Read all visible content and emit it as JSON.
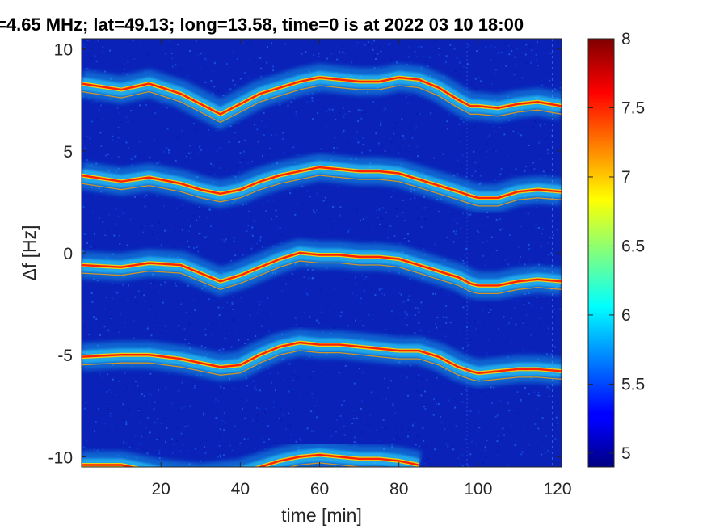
{
  "chart_data": {
    "type": "heatmap",
    "title": "=4.65 MHz;  lat=49.13; long=13.58, time=0 is at 2022 03 10 18:00",
    "xlabel": "time [min]",
    "ylabel": "Δf [Hz]",
    "xlim": [
      0,
      121
    ],
    "ylim": [
      -10.5,
      10.5
    ],
    "x_ticks": [
      20,
      40,
      60,
      80,
      100,
      120
    ],
    "y_ticks": [
      10,
      5,
      0,
      -5,
      -10
    ],
    "y_tick_labels": [
      "10",
      "5",
      "0",
      "-5",
      "-10"
    ],
    "colorbar": {
      "range": [
        4.9,
        8.0
      ],
      "ticks": [
        5,
        5.5,
        6,
        6.5,
        7,
        7.5,
        8
      ],
      "tick_labels": [
        "5",
        "5.5",
        "6",
        "6.5",
        "7",
        "7.5",
        "8"
      ],
      "colormap": "jet"
    },
    "background_color": "#0a22b8",
    "series": [
      {
        "x": [
          0,
          10,
          17,
          25,
          30,
          35,
          40,
          45,
          50,
          55,
          60,
          65,
          70,
          75,
          80,
          85,
          90,
          95,
          98,
          100,
          105,
          110,
          115,
          121
        ],
        "y": [
          8.3,
          8.0,
          8.3,
          7.8,
          7.3,
          6.8,
          7.3,
          7.8,
          8.1,
          8.4,
          8.6,
          8.5,
          8.4,
          8.4,
          8.6,
          8.5,
          8.1,
          7.5,
          7.2,
          7.2,
          7.1,
          7.3,
          7.4,
          7.2
        ]
      },
      {
        "x": [
          0,
          10,
          17,
          25,
          30,
          35,
          40,
          45,
          50,
          55,
          60,
          65,
          70,
          75,
          80,
          85,
          90,
          95,
          98,
          100,
          105,
          110,
          115,
          121
        ],
        "y": [
          3.8,
          3.5,
          3.7,
          3.4,
          3.1,
          2.9,
          3.1,
          3.5,
          3.8,
          4.0,
          4.2,
          4.1,
          4.0,
          4.0,
          3.9,
          3.6,
          3.3,
          3.0,
          2.8,
          2.7,
          2.7,
          3.0,
          3.1,
          3.0
        ]
      },
      {
        "x": [
          0,
          10,
          17,
          25,
          30,
          35,
          40,
          45,
          50,
          55,
          60,
          65,
          70,
          75,
          80,
          85,
          90,
          95,
          98,
          100,
          105,
          110,
          115,
          121
        ],
        "y": [
          -0.6,
          -0.7,
          -0.5,
          -0.6,
          -1.0,
          -1.4,
          -1.1,
          -0.7,
          -0.3,
          0.0,
          -0.1,
          -0.1,
          -0.2,
          -0.2,
          -0.3,
          -0.6,
          -0.9,
          -1.2,
          -1.5,
          -1.6,
          -1.6,
          -1.4,
          -1.3,
          -1.4
        ]
      },
      {
        "x": [
          0,
          10,
          17,
          25,
          30,
          35,
          40,
          45,
          50,
          55,
          60,
          65,
          70,
          75,
          80,
          85,
          90,
          95,
          98,
          100,
          105,
          110,
          115,
          121
        ],
        "y": [
          -5.1,
          -5.0,
          -5.0,
          -5.2,
          -5.4,
          -5.6,
          -5.5,
          -5.0,
          -4.6,
          -4.4,
          -4.5,
          -4.5,
          -4.6,
          -4.7,
          -4.8,
          -4.8,
          -5.1,
          -5.6,
          -5.8,
          -5.9,
          -5.8,
          -5.7,
          -5.7,
          -5.8
        ]
      },
      {
        "x": [
          0,
          5,
          10,
          15,
          20,
          30,
          40,
          45,
          50,
          55,
          60,
          65,
          70,
          75,
          80,
          85
        ],
        "y": [
          -10.4,
          -10.4,
          -10.4,
          -10.6,
          -10.8,
          -11.0,
          -10.8,
          -10.5,
          -10.2,
          -10.0,
          -9.9,
          -10.0,
          -10.1,
          -10.1,
          -10.2,
          -10.4
        ]
      }
    ]
  }
}
